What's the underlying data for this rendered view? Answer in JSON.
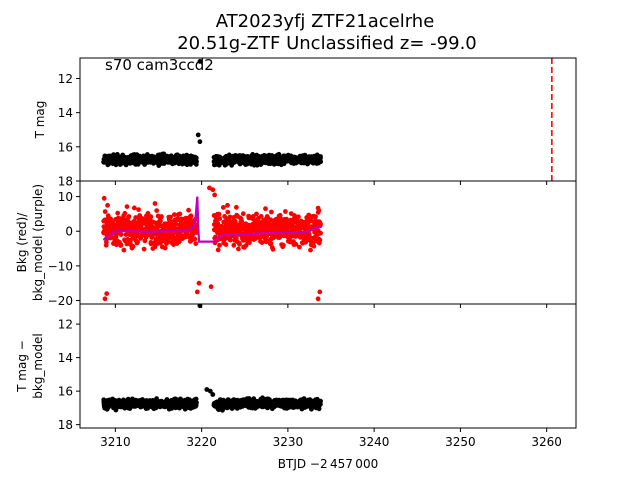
{
  "title": {
    "line1": "AT2023yfj  ZTF21acelrhe",
    "line2": "20.51g-ZTF Unclassified z= -99.0"
  },
  "annotation": "s70 cam3ccd2",
  "xlabel": "BTJD −2 457 000",
  "xlim": [
    3205.9,
    3263.4
  ],
  "xticks": [
    3210,
    3220,
    3230,
    3240,
    3250,
    3260
  ],
  "colors": {
    "tmag": "#000000",
    "bkg": "#ff0000",
    "bkg_model": "#bf00bf",
    "event_line": "#ff0000"
  },
  "chart_data": [
    {
      "type": "scatter",
      "ylabel": "T mag",
      "ylim": [
        18.0,
        10.8
      ],
      "yticks": [
        12,
        14,
        16,
        18
      ],
      "inverted": true,
      "vline": {
        "x": 3260.6,
        "style": "dashed"
      },
      "series": [
        {
          "color": "#000000",
          "segments": [
            {
              "x_start": 3208.6,
              "x_end": 3219.4,
              "y_center": 16.75,
              "spread": 0.35
            },
            {
              "x_start": 3221.4,
              "x_end": 3233.8,
              "y_center": 16.75,
              "spread": 0.35
            }
          ],
          "outliers": [
            {
              "x": 3219.8,
              "y": 11.0
            },
            {
              "x": 3219.6,
              "y": 15.3
            },
            {
              "x": 3219.8,
              "y": 15.7
            }
          ]
        }
      ]
    },
    {
      "type": "scatter",
      "ylabel": "Bkg (red)/\nbkg_model (purple)",
      "ylim": [
        -21.0,
        14.5
      ],
      "yticks": [
        -20,
        -10,
        0,
        10
      ],
      "series": [
        {
          "color": "#ff0000",
          "segments": [
            {
              "x_start": 3208.6,
              "x_end": 3219.4,
              "y_center": 0.5,
              "spread": 6.0
            },
            {
              "x_start": 3221.4,
              "x_end": 3233.8,
              "y_center": 0.5,
              "spread": 6.0
            }
          ],
          "outliers": [
            {
              "x": 3208.8,
              "y": -19.5
            },
            {
              "x": 3209.0,
              "y": -18.0
            },
            {
              "x": 3208.7,
              "y": 9.5
            },
            {
              "x": 3209.1,
              "y": 7.5
            },
            {
              "x": 3219.5,
              "y": -17.5
            },
            {
              "x": 3219.7,
              "y": -15.0
            },
            {
              "x": 3220.9,
              "y": 12.5
            },
            {
              "x": 3221.3,
              "y": 12.0
            },
            {
              "x": 3221.1,
              "y": -16.0
            },
            {
              "x": 3221.5,
              "y": 10.5
            },
            {
              "x": 3233.5,
              "y": -19.5
            },
            {
              "x": 3233.7,
              "y": -17.5
            },
            {
              "x": 3233.6,
              "y": 6.0
            },
            {
              "x": 3214.6,
              "y": 8.0
            },
            {
              "x": 3223.0,
              "y": 7.5
            },
            {
              "x": 3227.4,
              "y": 6.5
            }
          ]
        },
        {
          "color": "#bf00bf",
          "line": [
            [
              3208.6,
              -2.5
            ],
            [
              3209.2,
              -1.5
            ],
            [
              3210.0,
              0.0
            ],
            [
              3212.0,
              0.0
            ],
            [
              3214.0,
              -0.2
            ],
            [
              3216.0,
              0.0
            ],
            [
              3218.0,
              0.0
            ],
            [
              3219.0,
              1.0
            ],
            [
              3219.3,
              4.0
            ],
            [
              3219.5,
              10.0
            ],
            [
              3219.6,
              2.0
            ],
            [
              3219.7,
              -3.0
            ],
            [
              3221.4,
              -3.0
            ],
            [
              3222.0,
              -1.5
            ],
            [
              3223.0,
              -1.0
            ],
            [
              3225.0,
              -1.0
            ],
            [
              3227.0,
              -0.5
            ],
            [
              3229.0,
              -0.5
            ],
            [
              3231.0,
              -0.5
            ],
            [
              3232.5,
              0.0
            ],
            [
              3233.2,
              1.0
            ],
            [
              3233.8,
              1.5
            ]
          ]
        }
      ]
    },
    {
      "type": "scatter",
      "ylabel": "T mag −\nbkg_model",
      "ylim": [
        18.2,
        10.8
      ],
      "yticks": [
        12,
        14,
        16,
        18
      ],
      "inverted": true,
      "series": [
        {
          "color": "#000000",
          "segments": [
            {
              "x_start": 3208.6,
              "x_end": 3219.4,
              "y_center": 16.75,
              "spread": 0.35
            },
            {
              "x_start": 3221.4,
              "x_end": 3233.8,
              "y_center": 16.75,
              "spread": 0.35
            }
          ],
          "outliers": [
            {
              "x": 3219.8,
              "y": 10.9
            },
            {
              "x": 3220.6,
              "y": 15.9
            },
            {
              "x": 3221.0,
              "y": 16.0
            },
            {
              "x": 3221.3,
              "y": 16.2
            }
          ]
        }
      ]
    }
  ]
}
